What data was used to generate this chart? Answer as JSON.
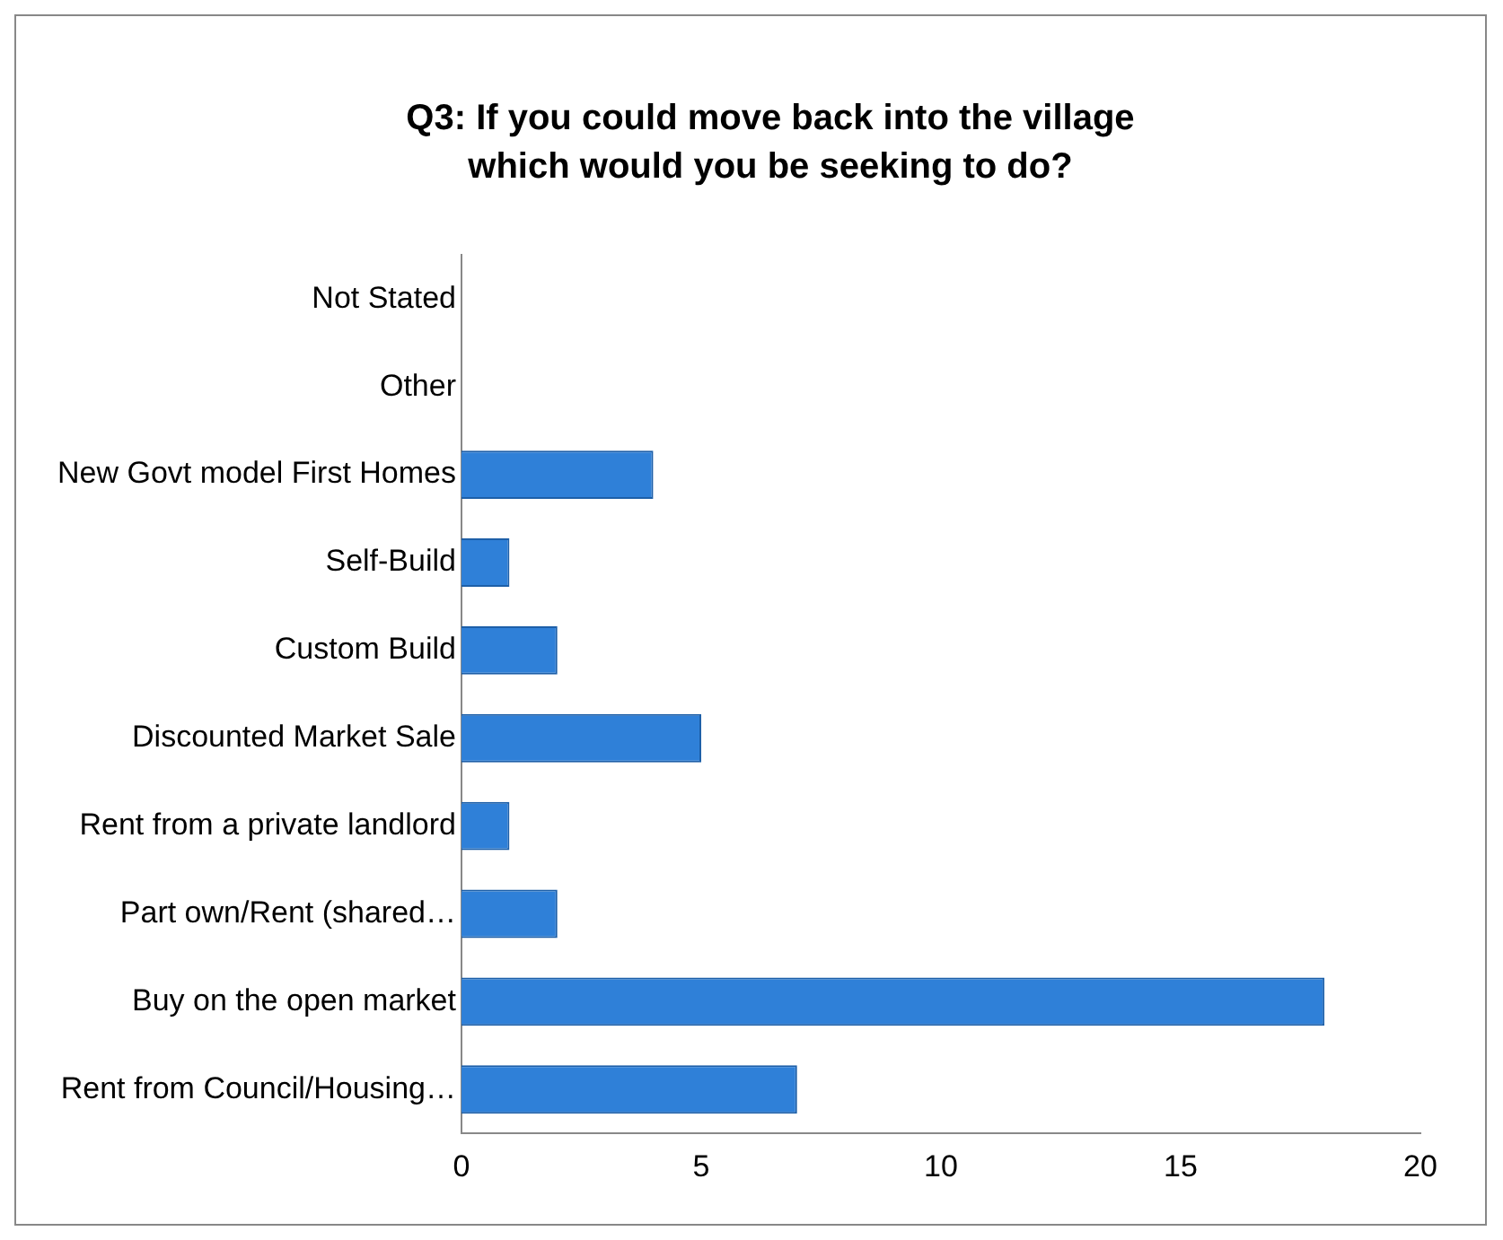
{
  "chart_data": {
    "type": "bar",
    "orientation": "horizontal",
    "title": "Q3: If you could move back into the village which would you be seeking to do?",
    "categories": [
      "Not Stated",
      "Other",
      "New Govt model First Homes",
      "Self-Build",
      "Custom Build",
      "Discounted Market Sale",
      "Rent from a private landlord",
      "Part own/Rent (shared…",
      "Buy on the open market",
      "Rent from Council/Housing…"
    ],
    "values": [
      0,
      0,
      4,
      1,
      2,
      5,
      1,
      2,
      18,
      7
    ],
    "color": "#2f80d8",
    "xlim": [
      0,
      20
    ],
    "xticks": [
      0,
      5,
      10,
      15,
      20
    ],
    "grid": false,
    "legend": false
  }
}
